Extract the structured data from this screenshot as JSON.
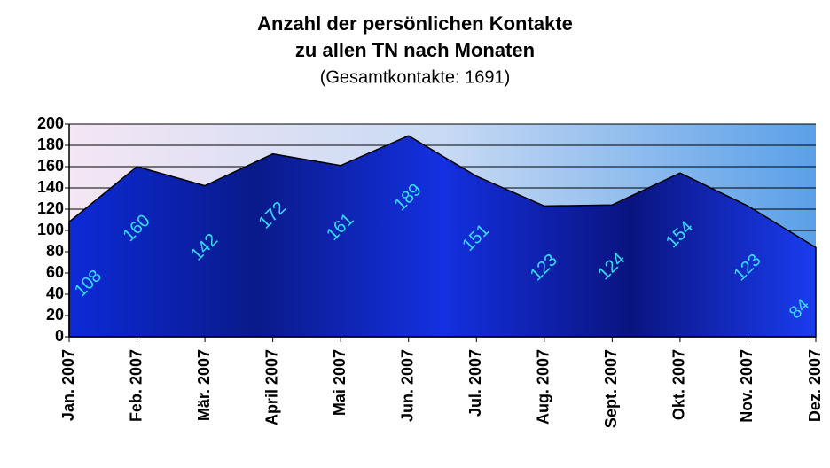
{
  "chart_data": {
    "type": "area",
    "title": [
      "Anzahl der persönlichen Kontakte",
      "zu allen TN nach Monaten"
    ],
    "subtitle": "(Gesamtkontakte: 1691)",
    "categories": [
      "Jan. 2007",
      "Feb. 2007",
      "Mär. 2007",
      "April 2007",
      "Mai 2007",
      "Jun. 2007",
      "Jul. 2007",
      "Aug. 2007",
      "Sept. 2007",
      "Okt. 2007",
      "Nov. 2007",
      "Dez. 2007"
    ],
    "values": [
      108,
      160,
      142,
      172,
      161,
      189,
      151,
      123,
      124,
      154,
      123,
      84
    ],
    "color": "#0a1a9a",
    "label_color": "#33ddff",
    "ylim": [
      0,
      200
    ],
    "yticks": [
      0,
      20,
      40,
      60,
      80,
      100,
      120,
      140,
      160,
      180,
      200
    ],
    "grid": true
  }
}
